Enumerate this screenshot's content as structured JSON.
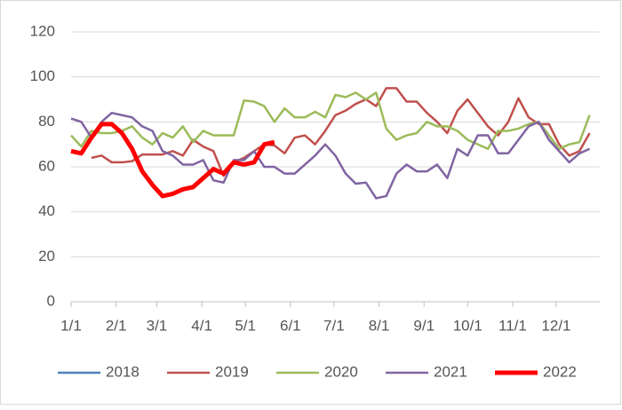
{
  "chart_data": {
    "type": "line",
    "x": [
      0,
      7,
      14,
      21,
      28,
      35,
      42,
      49,
      56,
      63,
      70,
      77,
      84,
      91,
      98,
      105,
      112,
      119,
      126,
      133,
      140,
      147,
      154,
      161,
      168,
      175,
      182,
      189,
      196,
      203,
      210,
      217,
      224,
      231,
      238,
      245,
      252,
      259,
      266,
      273,
      280,
      287,
      294,
      301,
      308,
      315,
      322,
      329,
      336,
      343,
      350,
      357
    ],
    "xlim": [
      0,
      364
    ],
    "xticks": [
      {
        "value": 0,
        "label": "1/1"
      },
      {
        "value": 31,
        "label": "2/1"
      },
      {
        "value": 59,
        "label": "3/1"
      },
      {
        "value": 90,
        "label": "4/1"
      },
      {
        "value": 120,
        "label": "5/1"
      },
      {
        "value": 151,
        "label": "6/1"
      },
      {
        "value": 181,
        "label": "7/1"
      },
      {
        "value": 212,
        "label": "8/1"
      },
      {
        "value": 243,
        "label": "9/1"
      },
      {
        "value": 273,
        "label": "10/1"
      },
      {
        "value": 304,
        "label": "11/1"
      },
      {
        "value": 334,
        "label": "12/1"
      }
    ],
    "ylim": [
      0,
      120
    ],
    "yticks": [
      0,
      20,
      40,
      60,
      80,
      100,
      120
    ],
    "grid": true,
    "legend": "bottom",
    "series": [
      {
        "name": "2018",
        "color": "#4f81bd",
        "width": 2.5,
        "values": [
          null,
          null,
          null,
          null,
          null,
          null,
          null,
          null,
          null,
          null,
          null,
          null,
          null,
          null,
          null,
          null,
          null,
          null,
          null,
          null,
          null,
          null,
          null,
          null,
          null,
          null,
          null,
          null,
          null,
          null,
          null,
          null,
          null,
          null,
          null,
          null,
          null,
          null,
          null,
          null,
          null,
          null,
          null,
          null,
          null,
          null,
          null,
          null,
          null,
          null,
          null,
          null
        ]
      },
      {
        "name": "2019",
        "color": "#c0504d",
        "width": 2.5,
        "values": [
          null,
          null,
          64,
          65,
          62,
          62,
          62.5,
          65.5,
          65.5,
          65.5,
          67,
          65,
          72,
          69,
          67,
          56,
          62,
          64,
          67,
          70,
          69.5,
          66,
          73,
          74,
          70,
          76,
          83,
          85,
          88,
          90,
          87,
          95,
          95,
          89,
          89,
          84,
          80,
          75,
          85,
          90,
          84,
          78,
          74,
          80,
          90.5,
          82,
          79,
          79,
          70,
          65,
          67,
          75
        ]
      },
      {
        "name": "2020",
        "color": "#9bbb59",
        "width": 2.5,
        "values": [
          74,
          69,
          76,
          75,
          75,
          76,
          78,
          73,
          70,
          75,
          73,
          78,
          71,
          76,
          74,
          74,
          74,
          89.5,
          89,
          87,
          80,
          86,
          82,
          82,
          84.5,
          82,
          92,
          91,
          93,
          90,
          93,
          77,
          72,
          74,
          75,
          80,
          78,
          78,
          76,
          72,
          70,
          68,
          76,
          76,
          77,
          79,
          80,
          74,
          68,
          70,
          71,
          83
        ]
      },
      {
        "name": "2021",
        "color": "#8064a2",
        "width": 2.5,
        "values": [
          81.5,
          80,
          73,
          80,
          84,
          83,
          82,
          78,
          76,
          67,
          65,
          61,
          61,
          63,
          54,
          53,
          63,
          63,
          67,
          60,
          60,
          57,
          57,
          61,
          65,
          70,
          65,
          57,
          52.5,
          53,
          46,
          47,
          57,
          61,
          58,
          58,
          61,
          55,
          68,
          65,
          74,
          74,
          66,
          66,
          72,
          78,
          80,
          72,
          67,
          62,
          66,
          68
        ]
      },
      {
        "name": "2022",
        "color": "#ff0000",
        "width": 5,
        "values": [
          67,
          66,
          73,
          79,
          79,
          75,
          68,
          58,
          52,
          47,
          48,
          50,
          51,
          55,
          59,
          57,
          62,
          61,
          62,
          70,
          71,
          null,
          null,
          null,
          null,
          null,
          null,
          null,
          null,
          null,
          null,
          null,
          null,
          null,
          null,
          null,
          null,
          null,
          null,
          null,
          null,
          null,
          null,
          null,
          null,
          null,
          null,
          null,
          null,
          null,
          null,
          null
        ]
      }
    ]
  }
}
